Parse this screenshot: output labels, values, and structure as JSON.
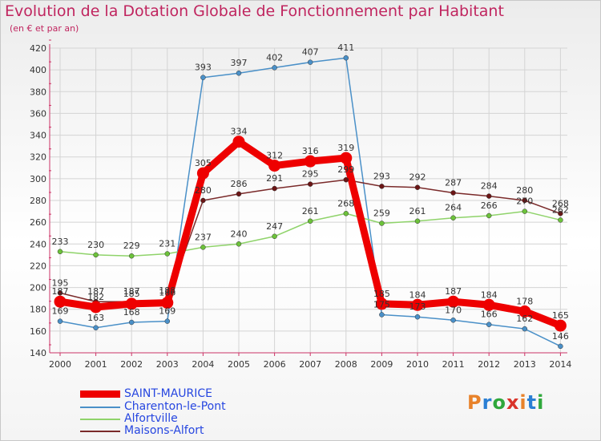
{
  "header": {
    "title": "Evolution de la Dotation Globale de Fonctionnement par Habitant",
    "subtitle": "(en € et par an)"
  },
  "logo": {
    "text": "Proxiti",
    "colors": [
      "#e8822a",
      "#2a7fd4",
      "#2fa83c",
      "#d9342b",
      "#e8822a",
      "#2a7fd4",
      "#2fa83c"
    ]
  },
  "chart_data": {
    "type": "line",
    "title": "Evolution de la Dotation Globale de Fonctionnement par Habitant",
    "subtitle": "(en € et par an)",
    "x": [
      "2000",
      "2001",
      "2002",
      "2003",
      "2004",
      "2005",
      "2006",
      "2007",
      "2008",
      "2009",
      "2010",
      "2011",
      "2012",
      "2013",
      "2014"
    ],
    "ylim": [
      140,
      420
    ],
    "yticks": [
      "140",
      "160",
      "180",
      "200",
      "220",
      "240",
      "260",
      "280",
      "300",
      "320",
      "340",
      "360",
      "380",
      "400",
      "420"
    ],
    "grid": true,
    "legend_position": "bottom-left",
    "series": [
      {
        "name": "Charenton-le-Pont",
        "color": "#4a90c8",
        "marker": "#4a90c8",
        "values": [
          169,
          163,
          168,
          169,
          393,
          397,
          402,
          407,
          411,
          175,
          173,
          170,
          166,
          162,
          146
        ],
        "labels": [
          "169",
          "163",
          "168",
          "169",
          "393",
          "397",
          "402",
          "407",
          "411",
          "175",
          "173",
          "170",
          "166",
          "162",
          "146"
        ]
      },
      {
        "name": "Alfortville",
        "color": "#8fd36a",
        "marker": "#6cc23a",
        "values": [
          233,
          230,
          229,
          231,
          237,
          240,
          247,
          261,
          268,
          259,
          261,
          264,
          266,
          270,
          262
        ],
        "labels": [
          "233",
          "230",
          "229",
          "231",
          "237",
          "240",
          "247",
          "261",
          "268",
          "259",
          "261",
          "264",
          "266",
          "270",
          "262"
        ]
      },
      {
        "name": "Maisons-Alfort",
        "color": "#7a2a2a",
        "marker": "#6b1515",
        "values": [
          195,
          187,
          187,
          188,
          280,
          286,
          291,
          295,
          299,
          293,
          292,
          287,
          284,
          280,
          268
        ],
        "labels": [
          "195",
          "187",
          "187",
          "188",
          "280",
          "286",
          "291",
          "295",
          "299",
          "293",
          "292",
          "287",
          "284",
          "280",
          "268"
        ]
      },
      {
        "name": "SAINT-MAURICE",
        "color": "#ee0000",
        "marker": "#ee0000",
        "values": [
          187,
          182,
          185,
          186,
          305,
          334,
          312,
          316,
          319,
          185,
          184,
          187,
          184,
          178,
          165
        ],
        "labels": [
          "187",
          "182",
          "185",
          "186",
          "305",
          "334",
          "312",
          "316",
          "319",
          "185",
          "184",
          "187",
          "184",
          "178",
          "165"
        ]
      }
    ]
  }
}
